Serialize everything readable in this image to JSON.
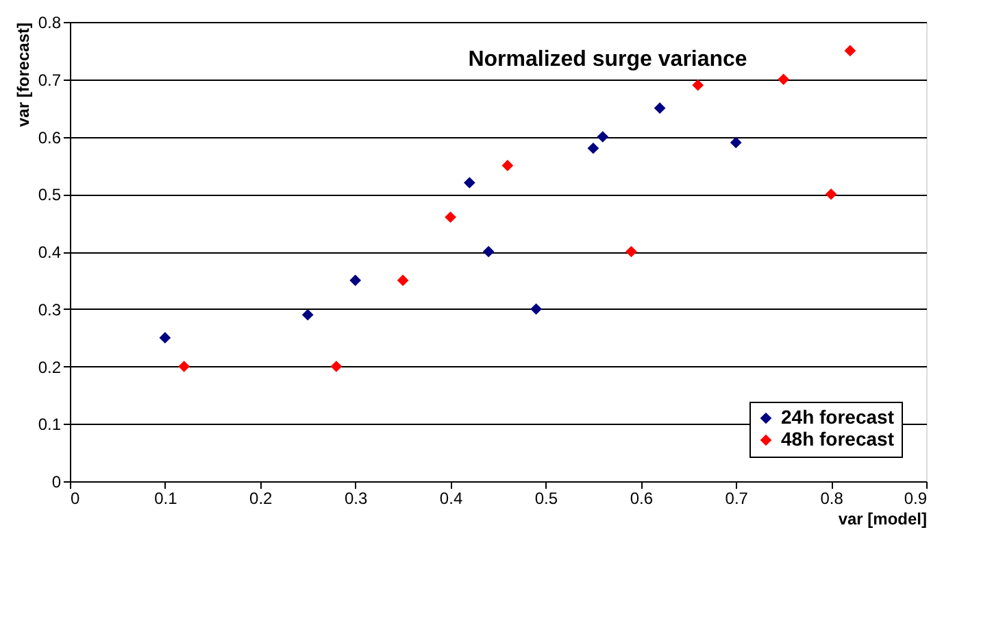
{
  "chart_data": {
    "type": "scatter",
    "title": "Normalized surge variance",
    "xlabel": "var [model]",
    "ylabel": "var [forecast]",
    "xlim": [
      0,
      0.9
    ],
    "xticks": [
      0,
      0.1,
      0.2,
      0.3,
      0.4,
      0.5,
      0.6,
      0.7,
      0.8,
      0.9
    ],
    "ylim": [
      0,
      0.8
    ],
    "yticks": [
      0,
      0.1,
      0.2,
      0.3,
      0.4,
      0.5,
      0.6,
      0.7,
      0.8
    ],
    "grid": "y",
    "legend": "bottom right",
    "marker": "diamond",
    "series": [
      {
        "name": "24h forecast",
        "color": "#000080",
        "x": [
          0.1,
          0.25,
          0.3,
          0.42,
          0.44,
          0.49,
          0.55,
          0.56,
          0.62,
          0.7
        ],
        "values": [
          0.25,
          0.29,
          0.35,
          0.52,
          0.4,
          0.3,
          0.58,
          0.6,
          0.65,
          0.59
        ]
      },
      {
        "name": "48h forecast",
        "color": "#ff0000",
        "x": [
          0.12,
          0.28,
          0.35,
          0.4,
          0.46,
          0.59,
          0.66,
          0.75,
          0.8,
          0.82
        ],
        "values": [
          0.2,
          0.2,
          0.35,
          0.46,
          0.55,
          0.4,
          0.69,
          0.7,
          0.5,
          0.75
        ]
      }
    ]
  }
}
